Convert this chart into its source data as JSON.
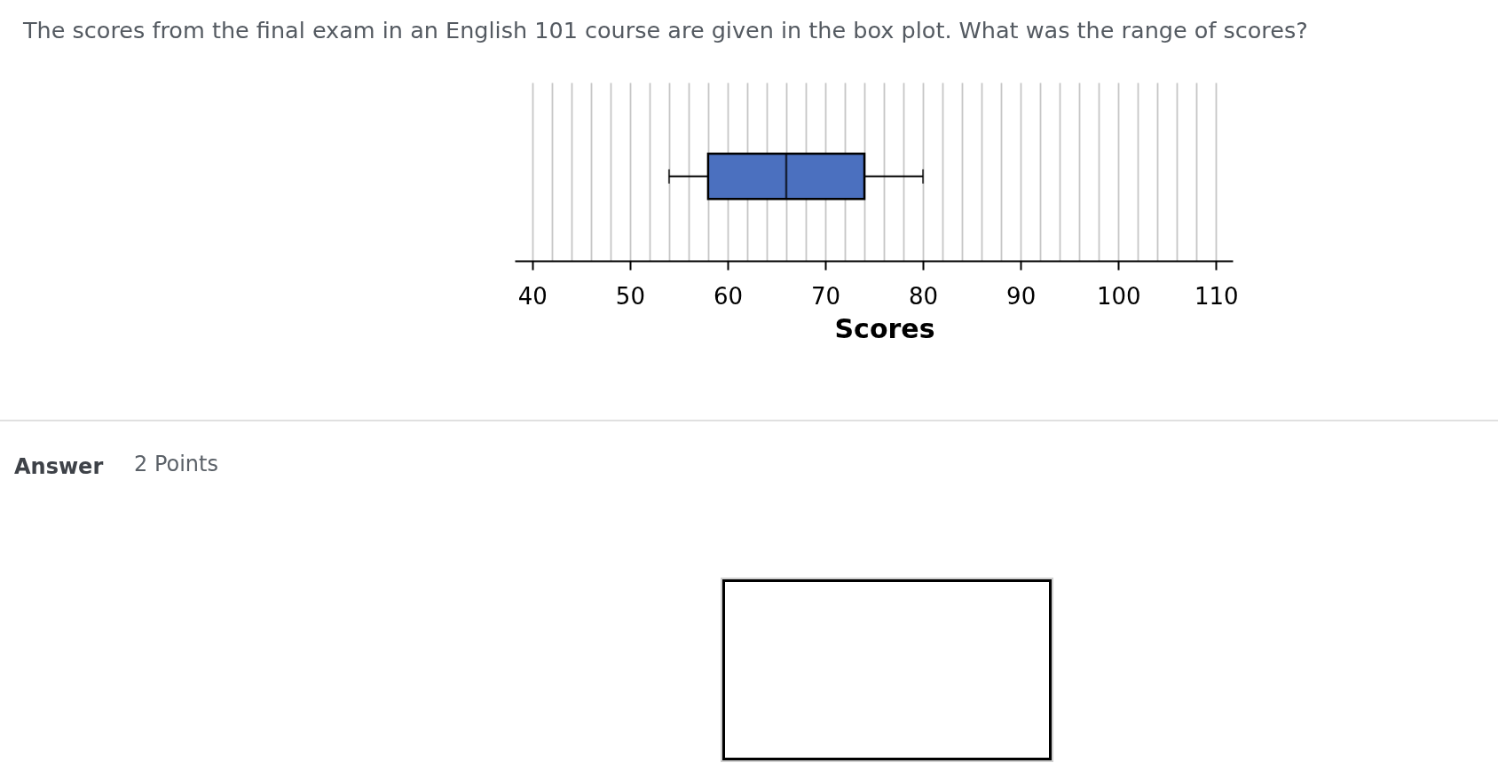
{
  "chart_data": {
    "type": "box",
    "title": "The scores from the final exam in an English 101 course are given in the box plot. What was the range of scores?",
    "xlabel": "Scores",
    "orientation": "horizontal",
    "categories": [
      null
    ],
    "boxes": [
      {
        "low": 54,
        "q1": 58,
        "median": 66,
        "q3": 74,
        "high": 80
      }
    ],
    "color": "#4b70bf",
    "xlim": [
      38.2,
      111.7
    ],
    "xticks": [
      40,
      {
        "value": 42,
        "label": null
      },
      {
        "value": 44,
        "label": null
      },
      {
        "value": 46,
        "label": null
      },
      {
        "value": 48,
        "label": null
      },
      50,
      {
        "value": 52,
        "label": null
      },
      {
        "value": 54,
        "label": null
      },
      {
        "value": 56,
        "label": null
      },
      {
        "value": 58,
        "label": null
      },
      60,
      {
        "value": 62,
        "label": null
      },
      {
        "value": 64,
        "label": null
      },
      {
        "value": 66,
        "label": null
      },
      {
        "value": 68,
        "label": null
      },
      70,
      {
        "value": 72,
        "label": null
      },
      {
        "value": 74,
        "label": null
      },
      {
        "value": 76,
        "label": null
      },
      {
        "value": 78,
        "label": null
      },
      80,
      {
        "value": 82,
        "label": null
      },
      {
        "value": 84,
        "label": null
      },
      {
        "value": 86,
        "label": null
      },
      {
        "value": 88,
        "label": null
      },
      90,
      {
        "value": 92,
        "label": null
      },
      {
        "value": 94,
        "label": null
      },
      {
        "value": 96,
        "label": null
      },
      {
        "value": 98,
        "label": null
      },
      100,
      {
        "value": 102,
        "label": null
      },
      {
        "value": 104,
        "label": null
      },
      {
        "value": 106,
        "label": null
      },
      {
        "value": 108,
        "label": null
      },
      110
    ],
    "grid": "x",
    "annotations": [
      "Answer",
      "2 Points"
    ]
  }
}
